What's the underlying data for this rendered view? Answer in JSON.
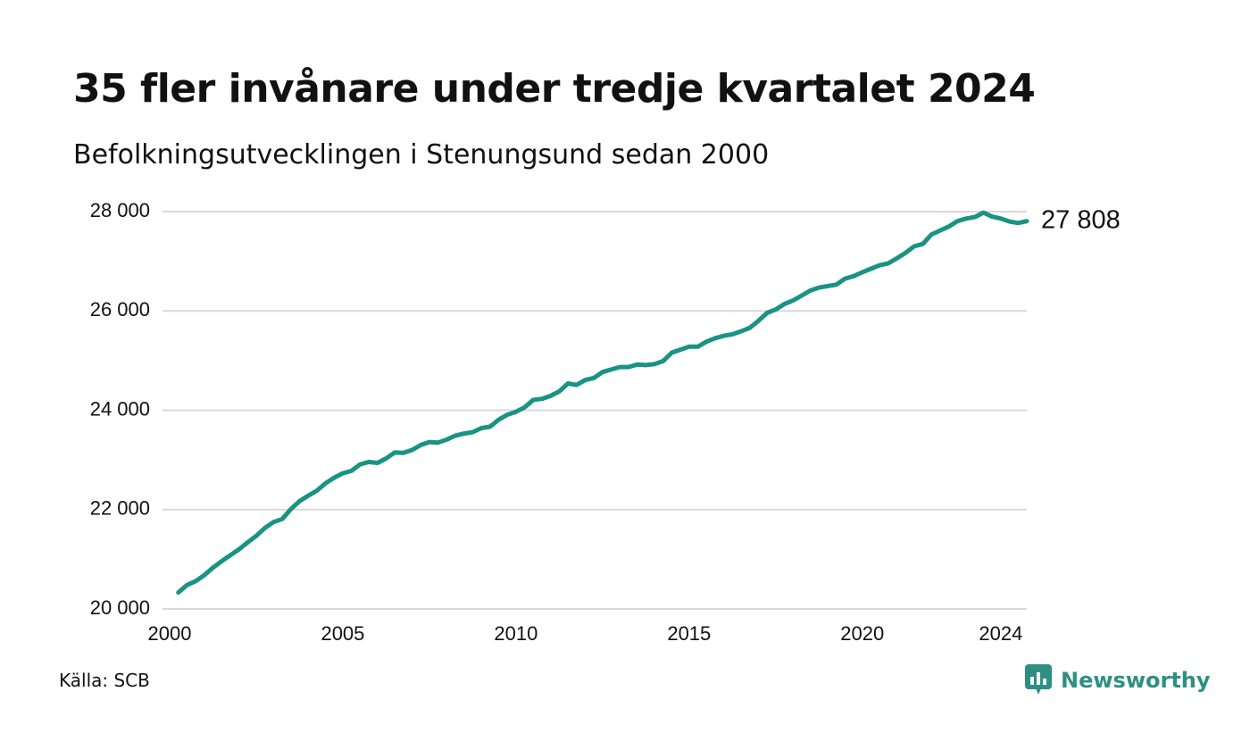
{
  "header": {
    "title": "35 fler invånare under tredje kvartalet 2024",
    "subtitle": "Befolkningsutvecklingen i Stenungsund sedan 2000"
  },
  "footer": {
    "source": "Källa: SCB",
    "brand": "Newsworthy"
  },
  "colors": {
    "line": "#1a9383",
    "grid": "#d9d9d9",
    "text": "#111111",
    "brand": "#2e8f83"
  },
  "icons": {
    "brand_logo": "newsworthy-logo-icon"
  },
  "chart_data": {
    "type": "line",
    "title": "35 fler invånare under tredje kvartalet 2024",
    "subtitle": "Befolkningsutvecklingen i Stenungsund sedan 2000",
    "xlabel": "",
    "ylabel": "",
    "xlim": [
      2000,
      2024.75
    ],
    "ylim": [
      20000,
      28000
    ],
    "x_ticks": [
      2000,
      2005,
      2010,
      2015,
      2020,
      2024
    ],
    "x_tick_labels": [
      "2000",
      "2005",
      "2010",
      "2015",
      "2020",
      "2024"
    ],
    "y_ticks": [
      20000,
      22000,
      24000,
      26000,
      28000
    ],
    "y_tick_labels": [
      "20 000",
      "22 000",
      "24 000",
      "26 000",
      "28 000"
    ],
    "grid": "horizontal",
    "end_label": "27 808",
    "series": [
      {
        "x": [
          2000.25,
          2000.5,
          2000.75,
          2001,
          2001.25,
          2001.5,
          2001.75,
          2002,
          2002.25,
          2002.5,
          2002.75,
          2003,
          2003.25,
          2003.5,
          2003.75,
          2004,
          2004.25,
          2004.5,
          2004.75,
          2005,
          2005.25,
          2005.5,
          2005.75,
          2006,
          2006.25,
          2006.5,
          2006.75,
          2007,
          2007.25,
          2007.5,
          2007.75,
          2008,
          2008.25,
          2008.5,
          2008.75,
          2009,
          2009.25,
          2009.5,
          2009.75,
          2010,
          2010.25,
          2010.5,
          2010.75,
          2011,
          2011.25,
          2011.5,
          2011.75,
          2012,
          2012.25,
          2012.5,
          2012.75,
          2013,
          2013.25,
          2013.5,
          2013.75,
          2014,
          2014.25,
          2014.5,
          2014.75,
          2015,
          2015.25,
          2015.5,
          2015.75,
          2016,
          2016.25,
          2016.5,
          2016.75,
          2017,
          2017.25,
          2017.5,
          2017.75,
          2018,
          2018.25,
          2018.5,
          2018.75,
          2019,
          2019.25,
          2019.5,
          2019.75,
          2020,
          2020.25,
          2020.5,
          2020.75,
          2021,
          2021.25,
          2021.5,
          2021.75,
          2022,
          2022.25,
          2022.5,
          2022.75,
          2023,
          2023.25,
          2023.5,
          2023.75,
          2024,
          2024.25,
          2024.5,
          2024.75
        ],
        "values": [
          20330,
          20480,
          20560,
          20680,
          20830,
          20960,
          21080,
          21200,
          21340,
          21470,
          21630,
          21750,
          21810,
          22010,
          22170,
          22280,
          22380,
          22530,
          22640,
          22730,
          22780,
          22910,
          22960,
          22940,
          23030,
          23150,
          23140,
          23200,
          23300,
          23360,
          23350,
          23410,
          23490,
          23530,
          23560,
          23640,
          23670,
          23810,
          23910,
          23970,
          24060,
          24210,
          24230,
          24290,
          24380,
          24540,
          24510,
          24610,
          24650,
          24770,
          24820,
          24870,
          24870,
          24920,
          24910,
          24930,
          24990,
          25160,
          25220,
          25280,
          25280,
          25380,
          25450,
          25500,
          25530,
          25590,
          25660,
          25800,
          25960,
          26030,
          26140,
          26210,
          26310,
          26410,
          26470,
          26500,
          26530,
          26650,
          26700,
          26780,
          26850,
          26920,
          26960,
          27060,
          27170,
          27300,
          27350,
          27540,
          27620,
          27700,
          27810,
          27860,
          27890,
          27980,
          27900,
          27860,
          27800,
          27770,
          27808
        ]
      }
    ]
  }
}
